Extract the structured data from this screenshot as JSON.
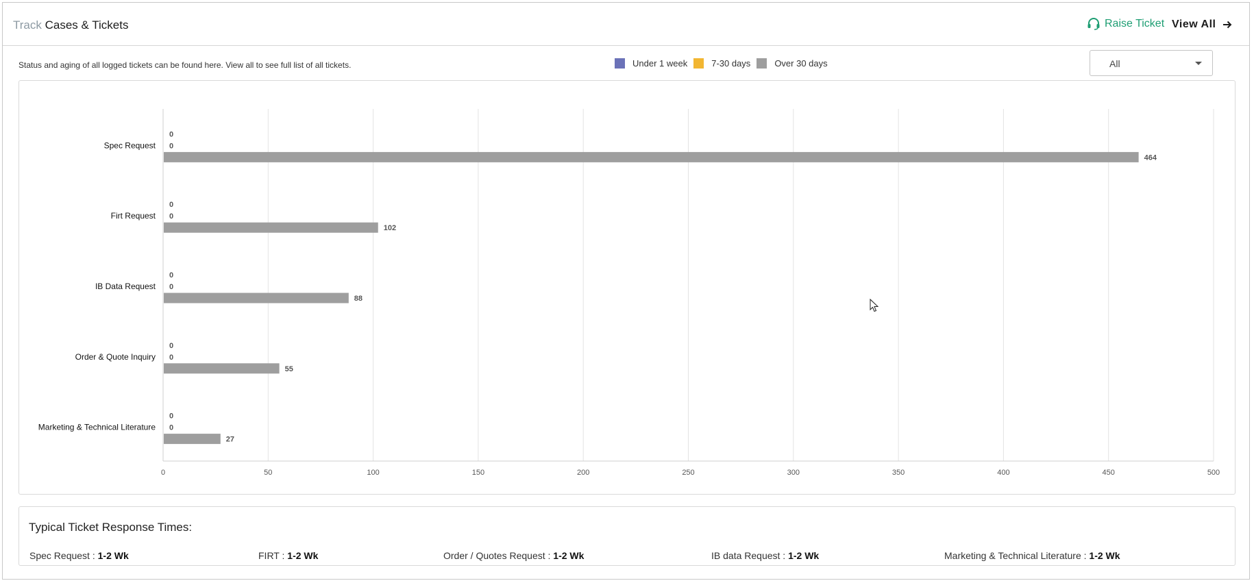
{
  "header": {
    "title_muted": "Track",
    "title_main": "Cases & Tickets",
    "raise_ticket": "Raise Ticket",
    "view_all": "View All"
  },
  "description": "Status and aging of all logged tickets can be found here. View all to see full list of all tickets.",
  "legend": [
    {
      "label": "Under 1 week",
      "color": "#6b72b8"
    },
    {
      "label": "7-30 days",
      "color": "#f2b632"
    },
    {
      "label": "Over 30 days",
      "color": "#9e9e9e"
    }
  ],
  "filter": {
    "selected": "All"
  },
  "chart_data": {
    "type": "bar",
    "orientation": "horizontal",
    "categories": [
      "Spec Request",
      "Firt Request",
      "IB Data Request",
      "Order & Quote Inquiry",
      "Marketing & Technical Literature"
    ],
    "series": [
      {
        "name": "Under 1 week",
        "color": "#6b72b8",
        "values": [
          0,
          0,
          0,
          0,
          0
        ]
      },
      {
        "name": "7-30 days",
        "color": "#f2b632",
        "values": [
          0,
          0,
          0,
          0,
          0
        ]
      },
      {
        "name": "Over 30 days",
        "color": "#9e9e9e",
        "values": [
          464,
          102,
          88,
          55,
          27
        ]
      }
    ],
    "xlim": [
      0,
      500
    ],
    "xticks": [
      0,
      50,
      100,
      150,
      200,
      250,
      300,
      350,
      400,
      450,
      500
    ],
    "grid": true
  },
  "response": {
    "title": "Typical Ticket Response Times:",
    "items": [
      {
        "label": "Spec Request :",
        "value": "1-2 Wk"
      },
      {
        "label": "FIRT :",
        "value": "1-2 Wk"
      },
      {
        "label": "Order / Quotes Request :",
        "value": "1-2 Wk"
      },
      {
        "label": "IB data Request :",
        "value": "1-2 Wk"
      },
      {
        "label": "Marketing & Technical Literature :",
        "value": "1-2 Wk"
      }
    ]
  }
}
